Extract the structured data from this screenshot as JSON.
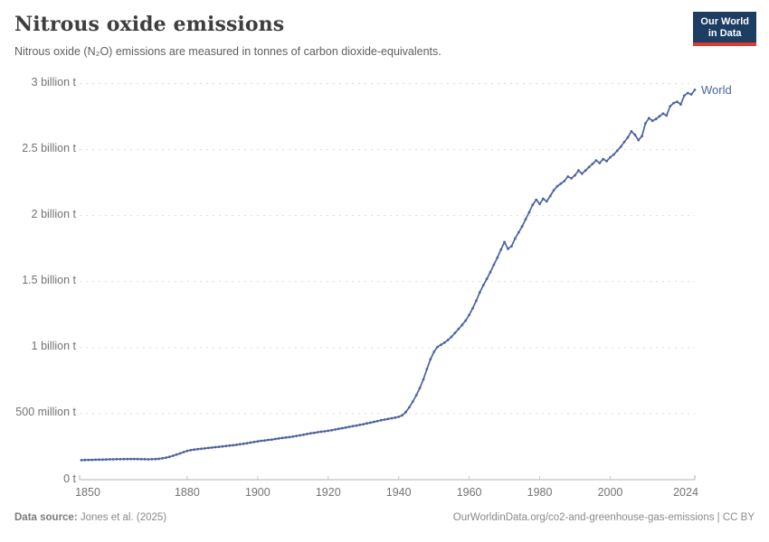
{
  "header": {
    "title": "Nitrous oxide emissions",
    "subtitle": "Nitrous oxide (N₂O) emissions are measured in tonnes of carbon dioxide-equivalents."
  },
  "logo": {
    "line1": "Our World",
    "line2": "in Data"
  },
  "footer": {
    "source_label": "Data source:",
    "source_value": " Jones et al. (2025)",
    "credit": "OurWorldinData.org/co2-and-greenhouse-gas-emissions | CC BY"
  },
  "colors": {
    "series": "#4c639f",
    "gridline": "#dcdcdc",
    "axis_line": "#b3b3b3",
    "axis_tick": "#c6c6c6",
    "axis_text": "#737373",
    "logo_bg": "#1d3d63",
    "logo_red": "#d73b31"
  },
  "chart_data": {
    "type": "line",
    "title": "Nitrous oxide emissions",
    "subtitle": "Nitrous oxide (N₂O) emissions are measured in tonnes of carbon dioxide-equivalents.",
    "values_unit": "million tonnes of CO₂-equivalents",
    "grid": "dashed horizontal gridlines",
    "legend_position": "end-of-line label",
    "year_start": 1850,
    "year_end": 2024,
    "ylim_million_t": [
      0,
      3000
    ],
    "x_ticks": [
      1850,
      1880,
      1900,
      1920,
      1940,
      1960,
      1980,
      2000,
      2024
    ],
    "y_ticks": [
      {
        "v": 0,
        "label": "0 t"
      },
      {
        "v": 500,
        "label": "500 million t"
      },
      {
        "v": 1000,
        "label": "1 billion t"
      },
      {
        "v": 1500,
        "label": "1.5 billion t"
      },
      {
        "v": 2000,
        "label": "2 billion t"
      },
      {
        "v": 2500,
        "label": "2.5 billion t"
      },
      {
        "v": 3000,
        "label": "3 billion t"
      }
    ],
    "series": [
      {
        "name": "World",
        "color": "#4c639f",
        "values_million_t": [
          148,
          149,
          150,
          150,
          151,
          152,
          152,
          153,
          154,
          154,
          155,
          155,
          156,
          156,
          157,
          157,
          156,
          155,
          155,
          154,
          155,
          156,
          158,
          162,
          167,
          173,
          181,
          190,
          199,
          209,
          218,
          224,
          228,
          231,
          234,
          237,
          240,
          243,
          246,
          249,
          252,
          255,
          258,
          261,
          264,
          268,
          272,
          276,
          281,
          285,
          290,
          294,
          297,
          301,
          304,
          308,
          312,
          316,
          319,
          322,
          326,
          331,
          336,
          341,
          346,
          351,
          355,
          359,
          363,
          366,
          370,
          375,
          380,
          385,
          390,
          395,
          400,
          405,
          410,
          415,
          420,
          426,
          432,
          438,
          444,
          450,
          455,
          460,
          465,
          470,
          476,
          487,
          512,
          548,
          592,
          640,
          695,
          760,
          838,
          912,
          968,
          1005,
          1022,
          1038,
          1058,
          1082,
          1112,
          1142,
          1172,
          1205,
          1248,
          1298,
          1355,
          1418,
          1472,
          1520,
          1572,
          1628,
          1682,
          1742,
          1800,
          1748,
          1768,
          1825,
          1872,
          1918,
          1972,
          2025,
          2082,
          2120,
          2088,
          2128,
          2108,
          2148,
          2192,
          2222,
          2242,
          2262,
          2295,
          2282,
          2305,
          2342,
          2318,
          2342,
          2368,
          2392,
          2418,
          2398,
          2428,
          2412,
          2442,
          2462,
          2492,
          2522,
          2558,
          2592,
          2638,
          2612,
          2572,
          2602,
          2698,
          2738,
          2718,
          2732,
          2752,
          2772,
          2758,
          2828,
          2852,
          2862,
          2842,
          2908,
          2928,
          2918,
          2952
        ]
      }
    ]
  }
}
